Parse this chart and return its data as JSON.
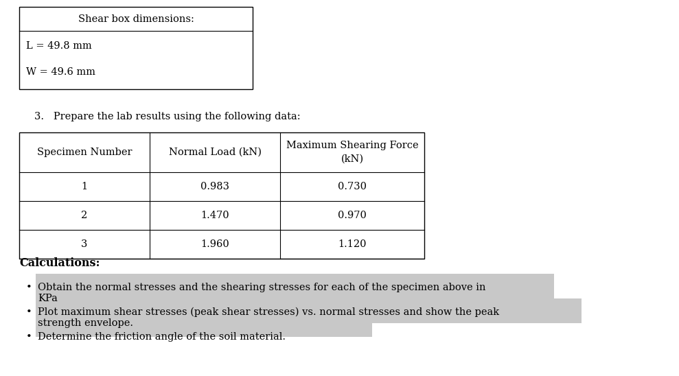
{
  "background_color": "#ffffff",
  "shear_box_title": "Shear box dimensions:",
  "L_label": "L = 49.8 mm",
  "W_label": "W = 49.6 mm",
  "section_text": "3.   Prepare the lab results using the following data:",
  "table_headers": [
    "Specimen Number",
    "Normal Load (kN)",
    "Maximum Shearing Force\n(kN)"
  ],
  "table_data": [
    [
      "1",
      "0.983",
      "0.730"
    ],
    [
      "2",
      "1.470",
      "0.970"
    ],
    [
      "3",
      "1.960",
      "1.120"
    ]
  ],
  "calculations_title": "Calculations:",
  "bullet_points": [
    [
      "Obtain the normal stresses and the shearing stresses for each of the specimen above in",
      "KPa"
    ],
    [
      "Plot maximum shear stresses (peak shear stresses) vs. normal stresses and show the peak",
      "strength envelope."
    ],
    [
      "Determine the friction angle of the soil material."
    ]
  ],
  "highlight_color": "#c8c8c8",
  "text_color": "#000000",
  "font_size": 10.5,
  "font_family": "DejaVu Serif"
}
